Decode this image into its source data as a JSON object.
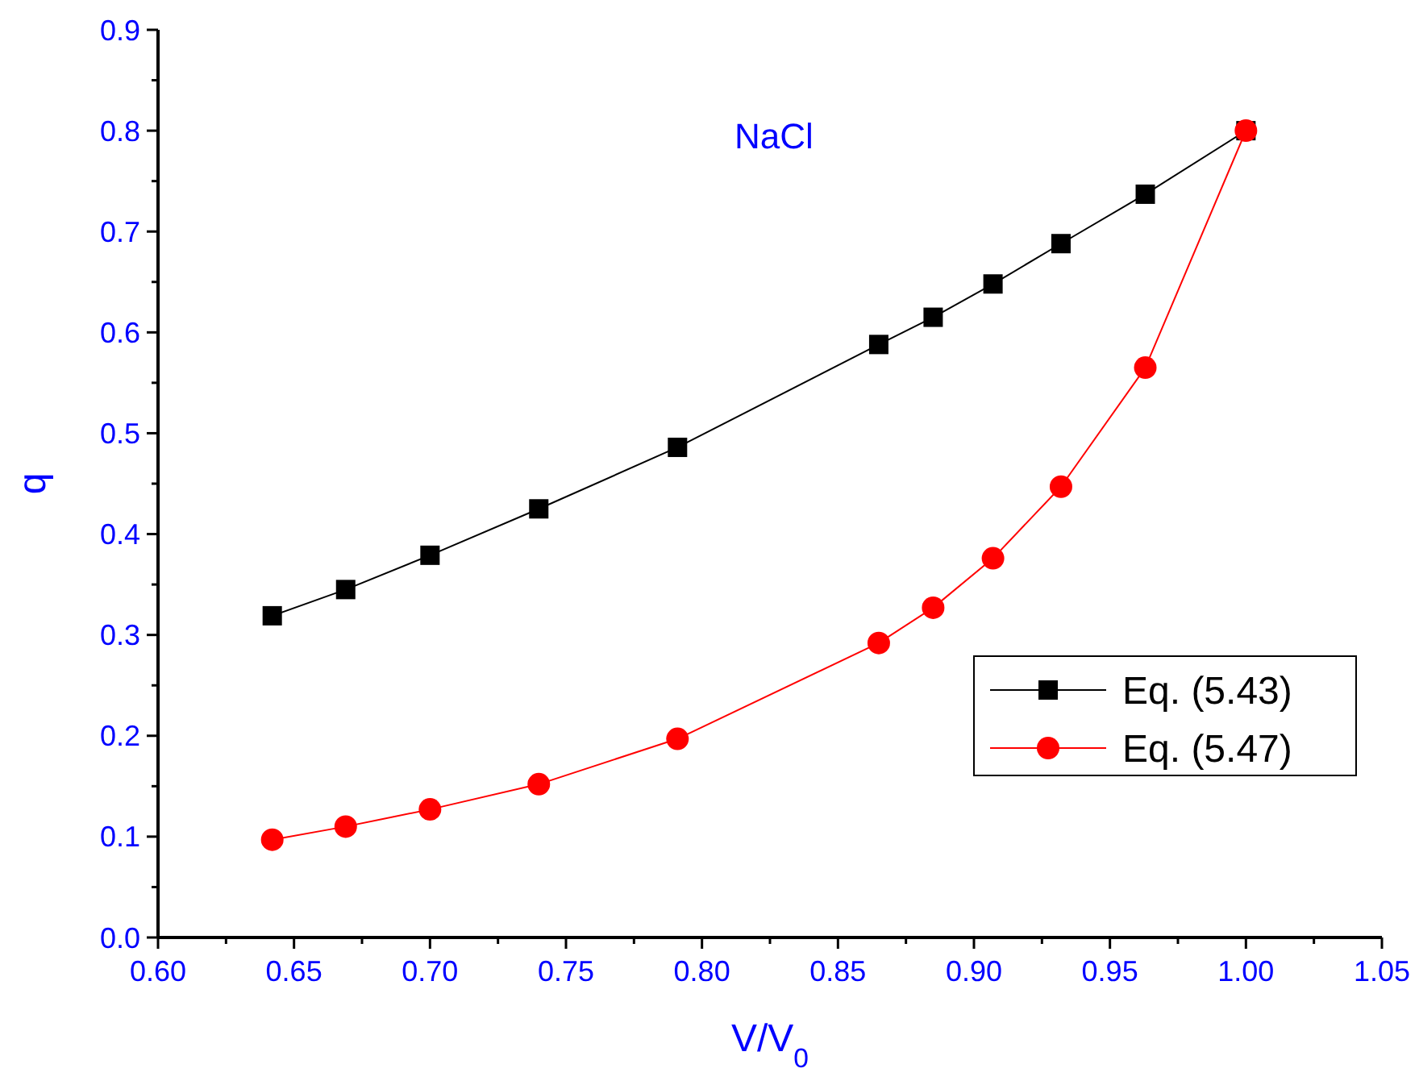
{
  "chart_data": {
    "type": "line",
    "title": "NaCl",
    "xlabel": "V/V$_{0}$",
    "ylabel": "q",
    "x": [
      0.642,
      0.669,
      0.7,
      0.74,
      0.791,
      0.865,
      0.885,
      0.907,
      0.932,
      0.963,
      1.0
    ],
    "series": [
      {
        "name": "Eq. (5.43)",
        "color": "#000000",
        "marker": "square",
        "values": [
          0.319,
          0.345,
          0.379,
          0.425,
          0.486,
          0.588,
          0.615,
          0.648,
          0.688,
          0.737,
          0.8
        ]
      },
      {
        "name": "Eq. (5.47)",
        "color": "#ff0000",
        "marker": "circle",
        "values": [
          0.097,
          0.11,
          0.127,
          0.152,
          0.197,
          0.292,
          0.327,
          0.376,
          0.447,
          0.565,
          0.8
        ]
      }
    ],
    "xlim": [
      0.6,
      1.05
    ],
    "ylim": [
      0,
      0.9
    ],
    "xticks": [
      {
        "value": 0.6,
        "label": "0.60"
      },
      {
        "value": 0.625,
        "label": null
      },
      {
        "value": 0.65,
        "label": "0.65"
      },
      {
        "value": 0.675,
        "label": null
      },
      {
        "value": 0.7,
        "label": "0.70"
      },
      {
        "value": 0.725,
        "label": null
      },
      {
        "value": 0.75,
        "label": "0.75"
      },
      {
        "value": 0.775,
        "label": null
      },
      {
        "value": 0.8,
        "label": "0.80"
      },
      {
        "value": 0.825,
        "label": null
      },
      {
        "value": 0.85,
        "label": "0.85"
      },
      {
        "value": 0.875,
        "label": null
      },
      {
        "value": 0.9,
        "label": "0.90"
      },
      {
        "value": 0.925,
        "label": null
      },
      {
        "value": 0.95,
        "label": "0.95"
      },
      {
        "value": 0.975,
        "label": null
      },
      {
        "value": 1.0,
        "label": "1.00"
      },
      {
        "value": 1.025,
        "label": null
      },
      {
        "value": 1.05,
        "label": "1.05"
      }
    ],
    "yticks": [
      {
        "value": 0,
        "label": "0.0"
      },
      {
        "value": 0.05,
        "label": null
      },
      0.1,
      {
        "value": 0.15,
        "label": null
      },
      0.2,
      {
        "value": 0.25,
        "label": null
      },
      0.3,
      {
        "value": 0.35,
        "label": null
      },
      0.4,
      {
        "value": 0.45,
        "label": null
      },
      0.5,
      {
        "value": 0.55,
        "label": null
      },
      0.6,
      {
        "value": 0.65,
        "label": null
      },
      0.7,
      {
        "value": 0.75,
        "label": null
      },
      0.8,
      {
        "value": 0.85,
        "label": null
      },
      0.9
    ],
    "grid": false,
    "legend": "bottom right",
    "line_style": "solid"
  }
}
